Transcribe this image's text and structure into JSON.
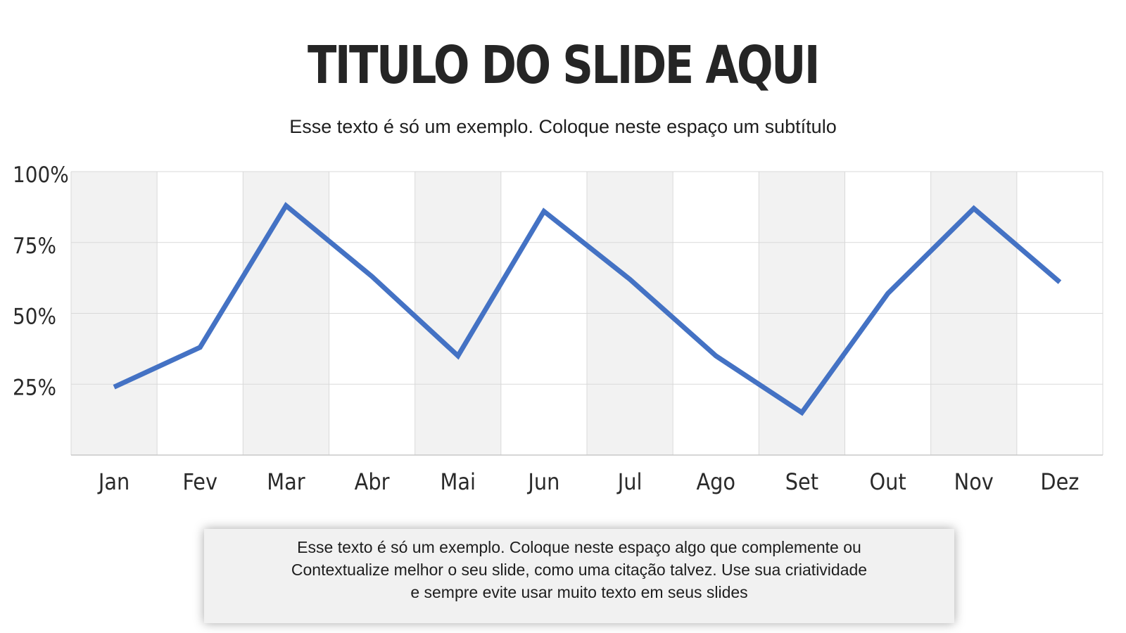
{
  "slide": {
    "title": "TITULO DO SLIDE AQUI",
    "subtitle": "Esse texto é só um exemplo. Coloque neste espaço um subtítulo"
  },
  "quote": {
    "lines": [
      "Esse texto é só um exemplo. Coloque neste espaço algo que complemente ou",
      "Contextualize melhor o seu slide, como uma citação talvez. Use sua criatividade",
      "e sempre evite usar muito texto em seus slides"
    ]
  },
  "chart_data": {
    "type": "line",
    "categories": [
      "Jan",
      "Fev",
      "Mar",
      "Abr",
      "Mai",
      "Jun",
      "Jul",
      "Ago",
      "Set",
      "Out",
      "Nov",
      "Dez"
    ],
    "series": [
      {
        "values": [
          0.24,
          0.38,
          0.88,
          0.63,
          0.35,
          0.86,
          0.62,
          0.35,
          0.15,
          0.57,
          0.87,
          0.61
        ]
      }
    ],
    "yticks": [
      {
        "value": 0.25,
        "label": "25%"
      },
      {
        "value": 0.5,
        "label": "50%"
      },
      {
        "value": 0.75,
        "label": "75%"
      },
      {
        "value": 1.0,
        "label": "100%"
      }
    ],
    "ylim": [
      0,
      1
    ],
    "grid": true,
    "alternating_bands": true,
    "line_color": "#4472c4",
    "band_color": "#f2f2f2",
    "grid_color": "#d9d9d9"
  }
}
